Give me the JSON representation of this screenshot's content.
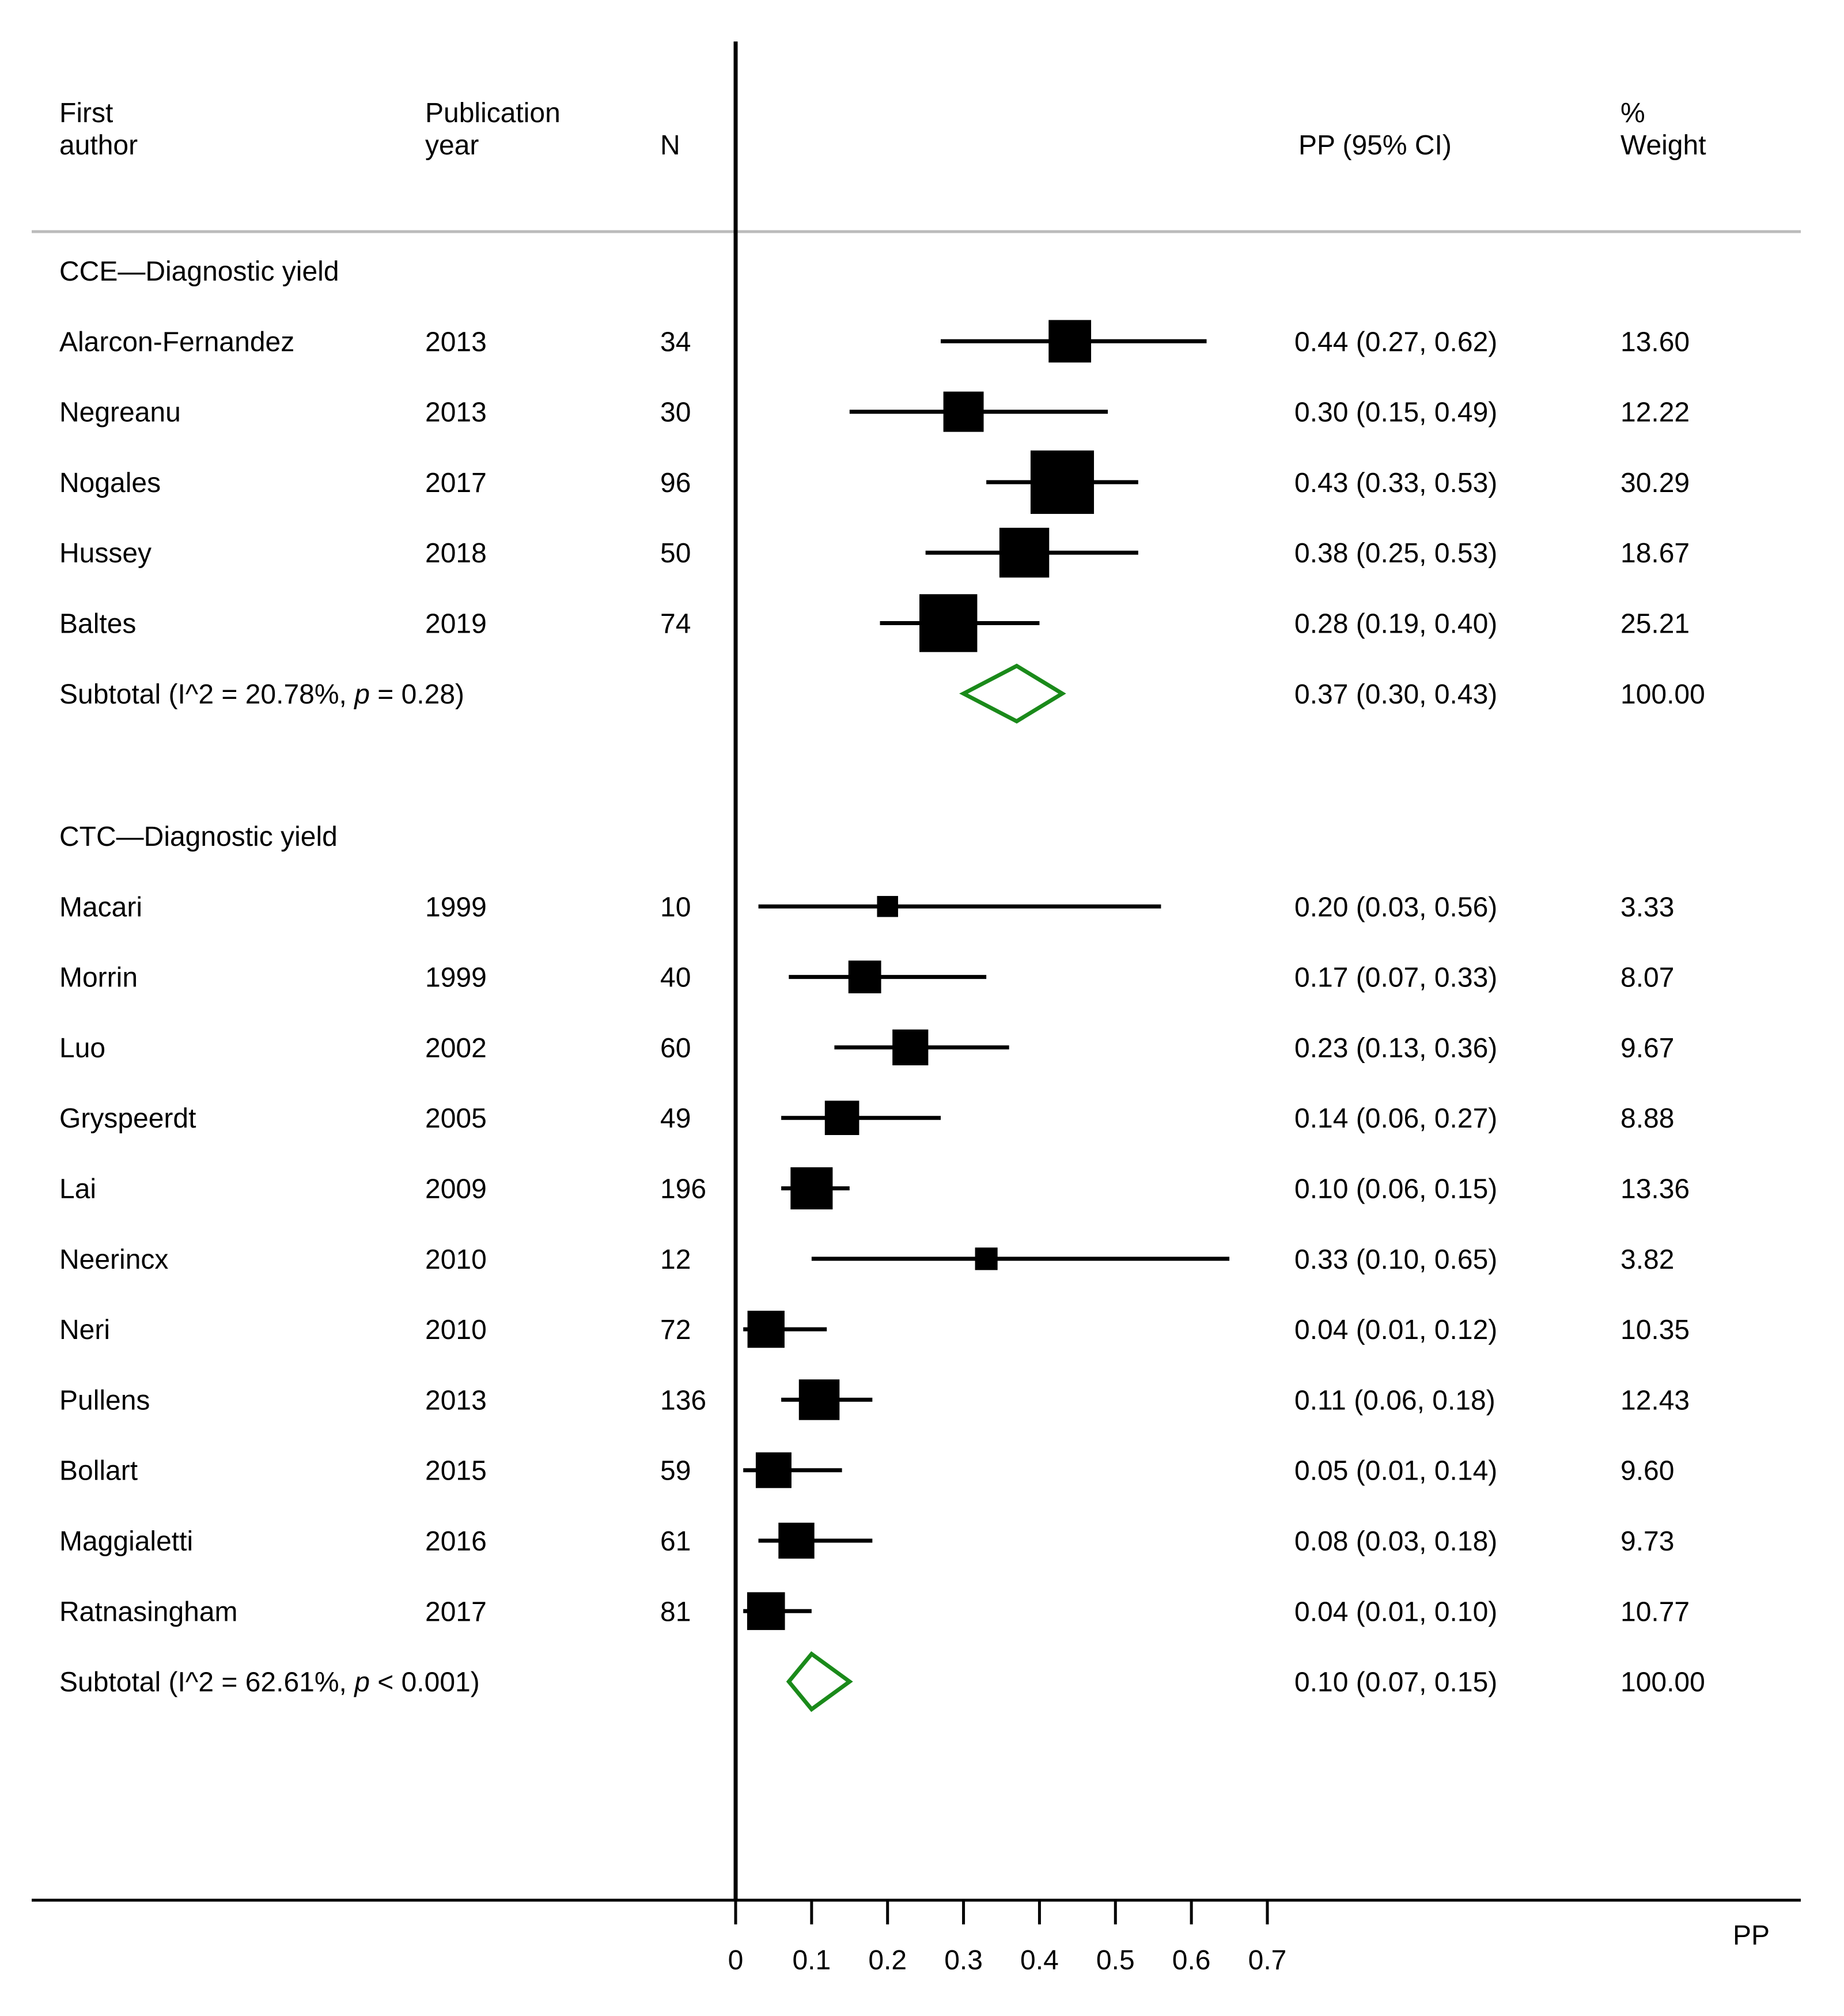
{
  "header": {
    "author": [
      "First",
      "author"
    ],
    "year": [
      "Publication",
      "year"
    ],
    "n": "N",
    "estimate": "PP (95% CI)",
    "weight": [
      "%",
      "Weight"
    ]
  },
  "colors": {
    "marker": "#000000",
    "diamond": "#1a8a1a",
    "separator": "#bbbbbb",
    "axis": "#000000"
  },
  "chart_data": {
    "type": "forest",
    "xlabel": "PP",
    "xlim": [
      0,
      0.7
    ],
    "x_ticks": [
      0,
      0.1,
      0.2,
      0.3,
      0.4,
      0.5,
      0.6,
      0.7
    ],
    "x_tick_labels": [
      "0",
      "0.1",
      "0.2",
      "0.3",
      "0.4",
      "0.5",
      "0.6",
      "0.7"
    ],
    "null_line": 0,
    "groups": [
      {
        "name": "CCE—Diagnostic yield",
        "studies": [
          {
            "author": "Alarcon-Fernandez",
            "year": "2013",
            "n": "34",
            "pp": 0.44,
            "lo": 0.27,
            "hi": 0.62,
            "ci_text": "0.44 (0.27, 0.62)",
            "weight": 13.6,
            "weight_text": "13.60"
          },
          {
            "author": "Negreanu",
            "year": "2013",
            "n": "30",
            "pp": 0.3,
            "lo": 0.15,
            "hi": 0.49,
            "ci_text": "0.30 (0.15, 0.49)",
            "weight": 12.22,
            "weight_text": "12.22"
          },
          {
            "author": "Nogales",
            "year": "2017",
            "n": "96",
            "pp": 0.43,
            "lo": 0.33,
            "hi": 0.53,
            "ci_text": "0.43 (0.33, 0.53)",
            "weight": 30.29,
            "weight_text": "30.29"
          },
          {
            "author": "Hussey",
            "year": "2018",
            "n": "50",
            "pp": 0.38,
            "lo": 0.25,
            "hi": 0.53,
            "ci_text": "0.38 (0.25, 0.53)",
            "weight": 18.67,
            "weight_text": "18.67"
          },
          {
            "author": "Baltes",
            "year": "2019",
            "n": "74",
            "pp": 0.28,
            "lo": 0.19,
            "hi": 0.4,
            "ci_text": "0.28 (0.19, 0.40)",
            "weight": 25.21,
            "weight_text": "25.21"
          }
        ],
        "subtotal": {
          "label_prefix": "Subtotal  (I^2 = 20.78%, ",
          "p_symbol": "p",
          "label_suffix": " = 0.28)",
          "pp": 0.37,
          "lo": 0.3,
          "hi": 0.43,
          "ci_text": "0.37 (0.30, 0.43)",
          "weight_text": "100.00"
        }
      },
      {
        "name": "CTC—Diagnostic yield",
        "studies": [
          {
            "author": "Macari",
            "year": "1999",
            "n": "10",
            "pp": 0.2,
            "lo": 0.03,
            "hi": 0.56,
            "ci_text": "0.20 (0.03, 0.56)",
            "weight": 3.33,
            "weight_text": "3.33"
          },
          {
            "author": "Morrin",
            "year": "1999",
            "n": "40",
            "pp": 0.17,
            "lo": 0.07,
            "hi": 0.33,
            "ci_text": "0.17 (0.07, 0.33)",
            "weight": 8.07,
            "weight_text": "8.07"
          },
          {
            "author": "Luo",
            "year": "2002",
            "n": "60",
            "pp": 0.23,
            "lo": 0.13,
            "hi": 0.36,
            "ci_text": "0.23 (0.13, 0.36)",
            "weight": 9.67,
            "weight_text": "9.67"
          },
          {
            "author": "Gryspeerdt",
            "year": "2005",
            "n": "49",
            "pp": 0.14,
            "lo": 0.06,
            "hi": 0.27,
            "ci_text": "0.14 (0.06, 0.27)",
            "weight": 8.88,
            "weight_text": "8.88"
          },
          {
            "author": "Lai",
            "year": "2009",
            "n": "196",
            "pp": 0.1,
            "lo": 0.06,
            "hi": 0.15,
            "ci_text": "0.10 (0.06, 0.15)",
            "weight": 13.36,
            "weight_text": "13.36"
          },
          {
            "author": "Neerincx",
            "year": "2010",
            "n": "12",
            "pp": 0.33,
            "lo": 0.1,
            "hi": 0.65,
            "ci_text": "0.33 (0.10, 0.65)",
            "weight": 3.82,
            "weight_text": "3.82"
          },
          {
            "author": "Neri",
            "year": "2010",
            "n": "72",
            "pp": 0.04,
            "lo": 0.01,
            "hi": 0.12,
            "ci_text": "0.04 (0.01, 0.12)",
            "weight": 10.35,
            "weight_text": "10.35"
          },
          {
            "author": "Pullens",
            "year": "2013",
            "n": "136",
            "pp": 0.11,
            "lo": 0.06,
            "hi": 0.18,
            "ci_text": "0.11 (0.06, 0.18)",
            "weight": 12.43,
            "weight_text": "12.43"
          },
          {
            "author": "Bollart",
            "year": "2015",
            "n": "59",
            "pp": 0.05,
            "lo": 0.01,
            "hi": 0.14,
            "ci_text": "0.05 (0.01, 0.14)",
            "weight": 9.6,
            "weight_text": "9.60"
          },
          {
            "author": "Maggialetti",
            "year": "2016",
            "n": "61",
            "pp": 0.08,
            "lo": 0.03,
            "hi": 0.18,
            "ci_text": "0.08 (0.03, 0.18)",
            "weight": 9.73,
            "weight_text": "9.73"
          },
          {
            "author": "Ratnasingham",
            "year": "2017",
            "n": "81",
            "pp": 0.04,
            "lo": 0.01,
            "hi": 0.1,
            "ci_text": "0.04 (0.01, 0.10)",
            "weight": 10.77,
            "weight_text": "10.77"
          }
        ],
        "subtotal": {
          "label_prefix": "Subtotal  (I^2 = 62.61%, ",
          "p_symbol": "p",
          "label_suffix": " < 0.001)",
          "pp": 0.1,
          "lo": 0.07,
          "hi": 0.15,
          "ci_text": "0.10 (0.07, 0.15)",
          "weight_text": "100.00"
        }
      }
    ]
  }
}
